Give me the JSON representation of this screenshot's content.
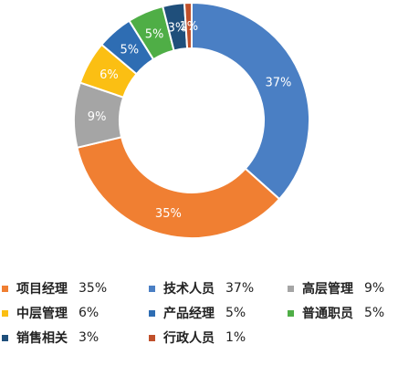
{
  "chart_data": {
    "type": "pie",
    "donut": true,
    "title": "",
    "slices": [
      {
        "name": "技术人员",
        "value": 37,
        "label": "37%",
        "color": "#4a7fc4"
      },
      {
        "name": "项目经理",
        "value": 35,
        "label": "35%",
        "color": "#f07f32"
      },
      {
        "name": "高层管理",
        "value": 9,
        "label": "9%",
        "color": "#a5a5a5"
      },
      {
        "name": "中层管理",
        "value": 6,
        "label": "6%",
        "color": "#fbbf13"
      },
      {
        "name": "产品经理",
        "value": 5,
        "label": "5%",
        "color": "#2e6db3"
      },
      {
        "name": "普通职员",
        "value": 5,
        "label": "5%",
        "color": "#4fae46"
      },
      {
        "name": "销售相关",
        "value": 3,
        "label": "3%",
        "color": "#1f4f7b"
      },
      {
        "name": "行政人员",
        "value": 1,
        "label": "1%",
        "color": "#c0502b"
      }
    ],
    "legend": [
      {
        "name": "项目经理",
        "value_text": "35%",
        "color": "#f07f32"
      },
      {
        "name": "技术人员",
        "value_text": "37%",
        "color": "#4a7fc4"
      },
      {
        "name": "高层管理",
        "value_text": "9%",
        "color": "#a5a5a5"
      },
      {
        "name": "中层管理",
        "value_text": "6%",
        "color": "#fbbf13"
      },
      {
        "name": "产品经理",
        "value_text": "5%",
        "color": "#2e6db3"
      },
      {
        "name": "普通职员",
        "value_text": "5%",
        "color": "#4fae46"
      },
      {
        "name": "销售相关",
        "value_text": "3%",
        "color": "#1f4f7b"
      },
      {
        "name": "行政人员",
        "value_text": "1%",
        "color": "#c0502b"
      }
    ],
    "legend_position": "bottom"
  }
}
